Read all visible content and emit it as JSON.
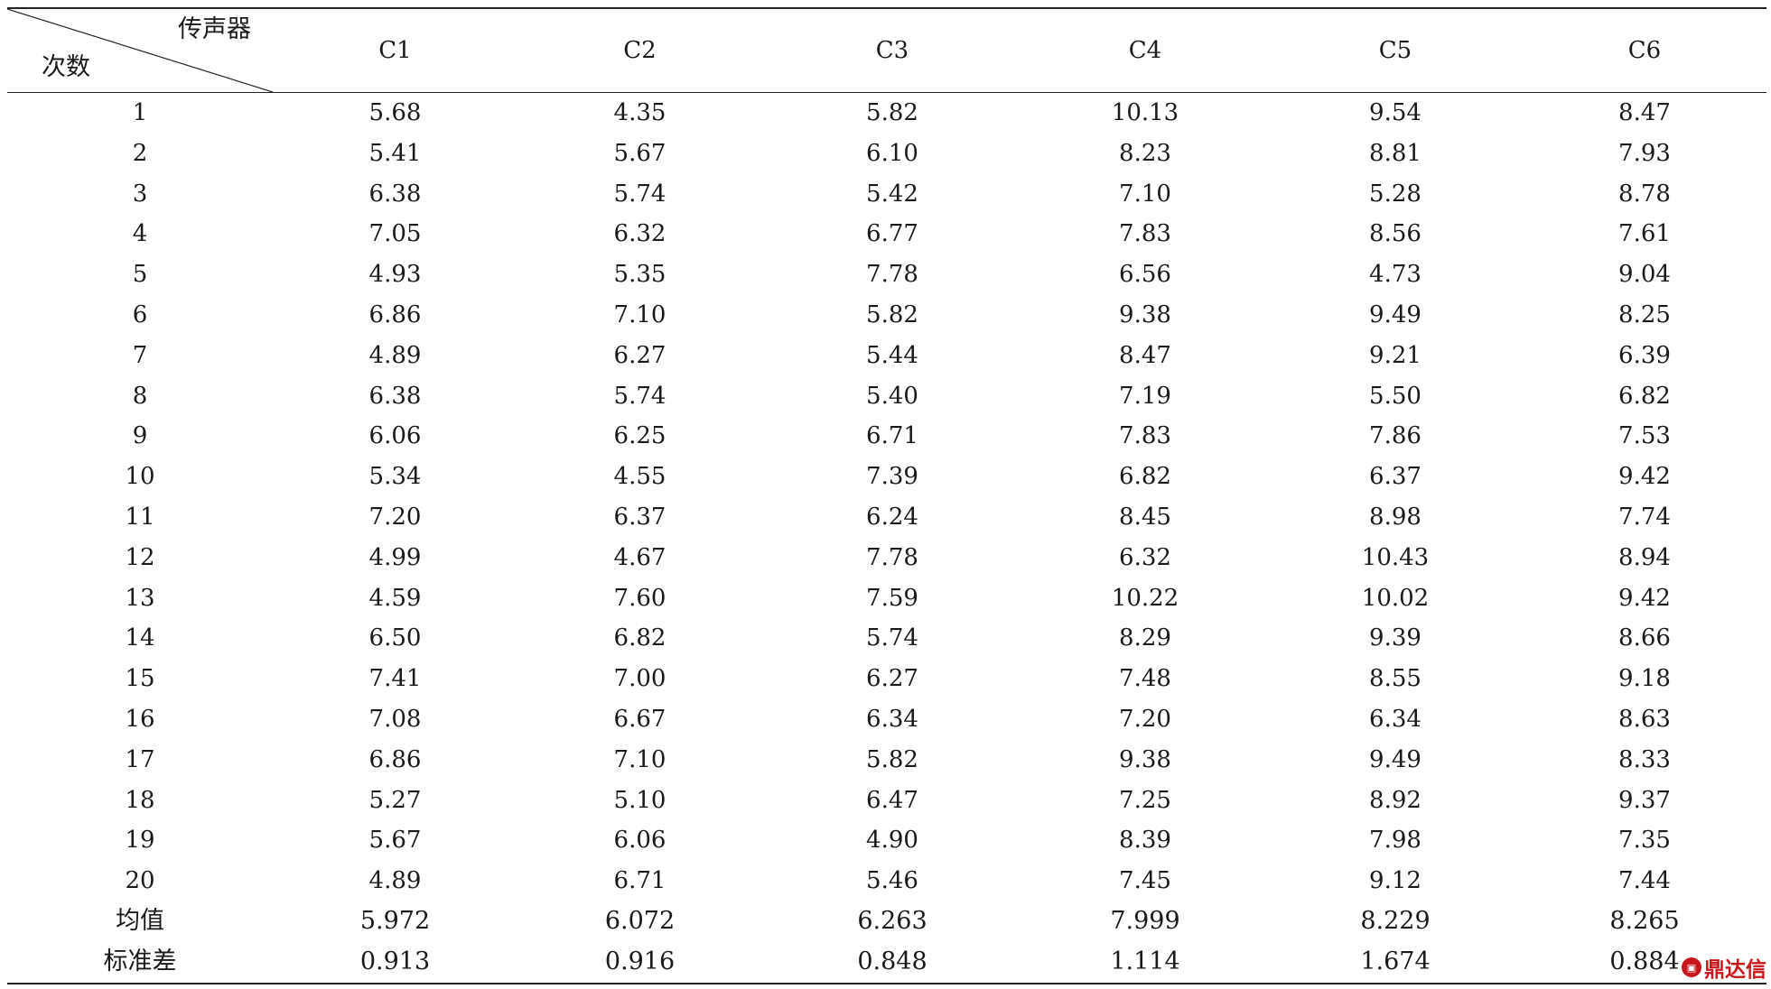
{
  "table": {
    "corner_header": {
      "top": "传声器",
      "bottom": "次数"
    },
    "columns": [
      "C1",
      "C2",
      "C3",
      "C4",
      "C5",
      "C6"
    ],
    "rows": [
      [
        "1",
        "5.68",
        "4.35",
        "5.82",
        "10.13",
        "9.54",
        "8.47"
      ],
      [
        "2",
        "5.41",
        "5.67",
        "6.10",
        "8.23",
        "8.81",
        "7.93"
      ],
      [
        "3",
        "6.38",
        "5.74",
        "5.42",
        "7.10",
        "5.28",
        "8.78"
      ],
      [
        "4",
        "7.05",
        "6.32",
        "6.77",
        "7.83",
        "8.56",
        "7.61"
      ],
      [
        "5",
        "4.93",
        "5.35",
        "7.78",
        "6.56",
        "4.73",
        "9.04"
      ],
      [
        "6",
        "6.86",
        "7.10",
        "5.82",
        "9.38",
        "9.49",
        "8.25"
      ],
      [
        "7",
        "4.89",
        "6.27",
        "5.44",
        "8.47",
        "9.21",
        "6.39"
      ],
      [
        "8",
        "6.38",
        "5.74",
        "5.40",
        "7.19",
        "5.50",
        "6.82"
      ],
      [
        "9",
        "6.06",
        "6.25",
        "6.71",
        "7.83",
        "7.86",
        "7.53"
      ],
      [
        "10",
        "5.34",
        "4.55",
        "7.39",
        "6.82",
        "6.37",
        "9.42"
      ],
      [
        "11",
        "7.20",
        "6.37",
        "6.24",
        "8.45",
        "8.98",
        "7.74"
      ],
      [
        "12",
        "4.99",
        "4.67",
        "7.78",
        "6.32",
        "10.43",
        "8.94"
      ],
      [
        "13",
        "4.59",
        "7.60",
        "7.59",
        "10.22",
        "10.02",
        "9.42"
      ],
      [
        "14",
        "6.50",
        "6.82",
        "5.74",
        "8.29",
        "9.39",
        "8.66"
      ],
      [
        "15",
        "7.41",
        "7.00",
        "6.27",
        "7.48",
        "8.55",
        "9.18"
      ],
      [
        "16",
        "7.08",
        "6.67",
        "6.34",
        "7.20",
        "6.34",
        "8.63"
      ],
      [
        "17",
        "6.86",
        "7.10",
        "5.82",
        "9.38",
        "9.49",
        "8.33"
      ],
      [
        "18",
        "5.27",
        "5.10",
        "6.47",
        "7.25",
        "8.92",
        "9.37"
      ],
      [
        "19",
        "5.67",
        "6.06",
        "4.90",
        "8.39",
        "7.98",
        "7.35"
      ],
      [
        "20",
        "4.89",
        "6.71",
        "5.46",
        "7.45",
        "9.12",
        "7.44"
      ]
    ],
    "summary_rows": [
      [
        "均值",
        "5.972",
        "6.072",
        "6.263",
        "7.999",
        "8.229",
        "8.265"
      ],
      [
        "标准差",
        "0.913",
        "0.916",
        "0.848",
        "1.114",
        "1.674",
        "0.884"
      ]
    ]
  },
  "watermark": {
    "text": "鼎达信",
    "icon": "dadaxin-logo-icon",
    "color": "#c8161d"
  }
}
